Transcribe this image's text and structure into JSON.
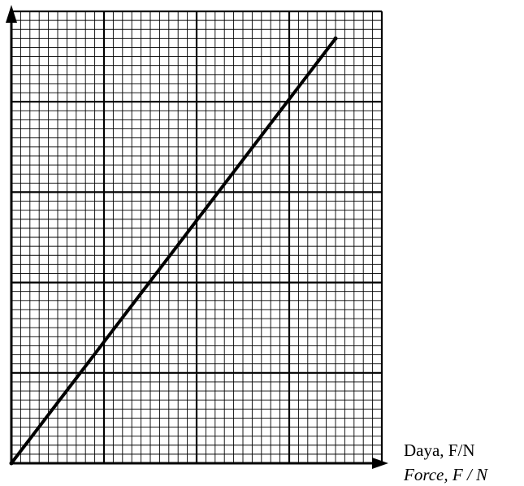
{
  "chart_data": {
    "type": "line",
    "xlabel_lines": [
      "Daya, F/N",
      "Force, F / N"
    ],
    "ylabel": "",
    "ticks_labeled": false,
    "grid": true,
    "grid_units": {
      "major_x": 4,
      "major_y": 5,
      "minor_per_major": 10
    },
    "series": [
      {
        "x": [
          0,
          3.5
        ],
        "y": [
          0,
          4.7
        ]
      }
    ],
    "xlim": [
      0,
      4
    ],
    "ylim": [
      0,
      5
    ],
    "colors": {
      "line": "#000000",
      "grid": "#000000",
      "background": "#ffffff"
    }
  }
}
